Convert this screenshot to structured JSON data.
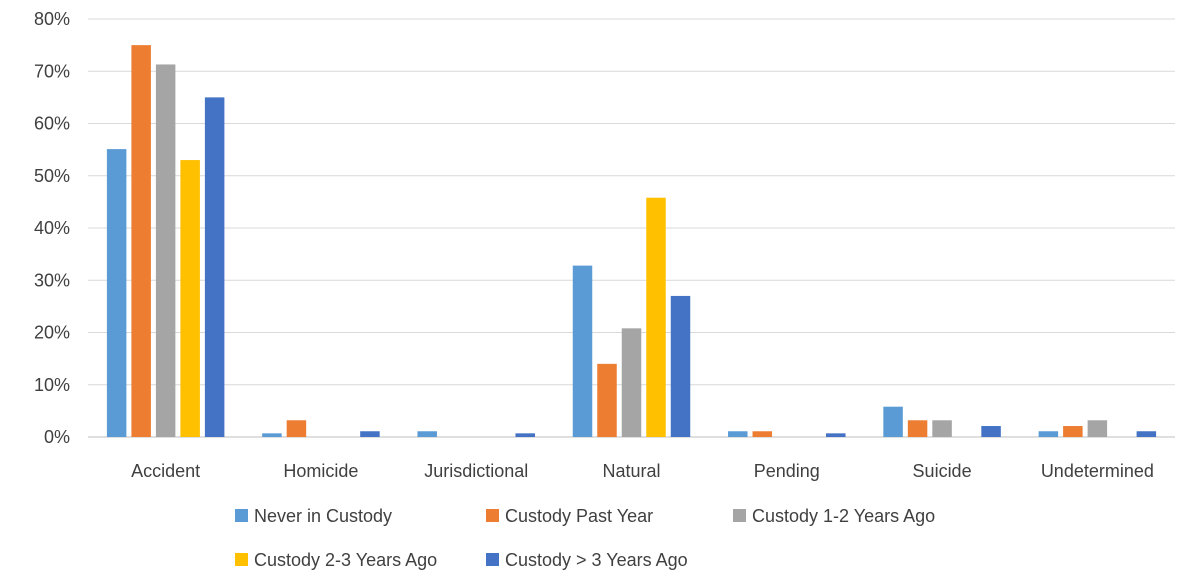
{
  "chart_data": {
    "type": "bar",
    "title": "",
    "xlabel": "",
    "ylabel": "",
    "ylim": [
      0,
      0.8
    ],
    "y_ticks": [
      "0%",
      "10%",
      "20%",
      "30%",
      "40%",
      "50%",
      "60%",
      "70%",
      "80%"
    ],
    "y_tick_values": [
      0,
      0.1,
      0.2,
      0.3,
      0.4,
      0.5,
      0.6,
      0.7,
      0.8
    ],
    "grid": true,
    "legend_position": "bottom",
    "categories": [
      "Accident",
      "Homicide",
      "Jurisdictional",
      "Natural",
      "Pending",
      "Suicide",
      "Undetermined"
    ],
    "series": [
      {
        "name": "Never in Custody",
        "color": "#5B9BD5",
        "values": [
          0.551,
          0.007,
          0.011,
          0.328,
          0.011,
          0.058,
          0.011
        ]
      },
      {
        "name": "Custody Past Year",
        "color": "#ED7D31",
        "values": [
          0.75,
          0.032,
          0,
          0.14,
          0.011,
          0.032,
          0.021
        ]
      },
      {
        "name": "Custody 1-2 Years Ago",
        "color": "#A5A5A5",
        "values": [
          0.713,
          0,
          0,
          0.208,
          0,
          0.032,
          0.032
        ]
      },
      {
        "name": "Custody 2-3 Years Ago",
        "color": "#FFC000",
        "values": [
          0.53,
          0,
          0,
          0.458,
          0,
          0,
          0
        ]
      },
      {
        "name": "Custody > 3 Years Ago",
        "color": "#4472C4",
        "values": [
          0.65,
          0.011,
          0.007,
          0.27,
          0.007,
          0.021,
          0.011
        ]
      }
    ]
  }
}
